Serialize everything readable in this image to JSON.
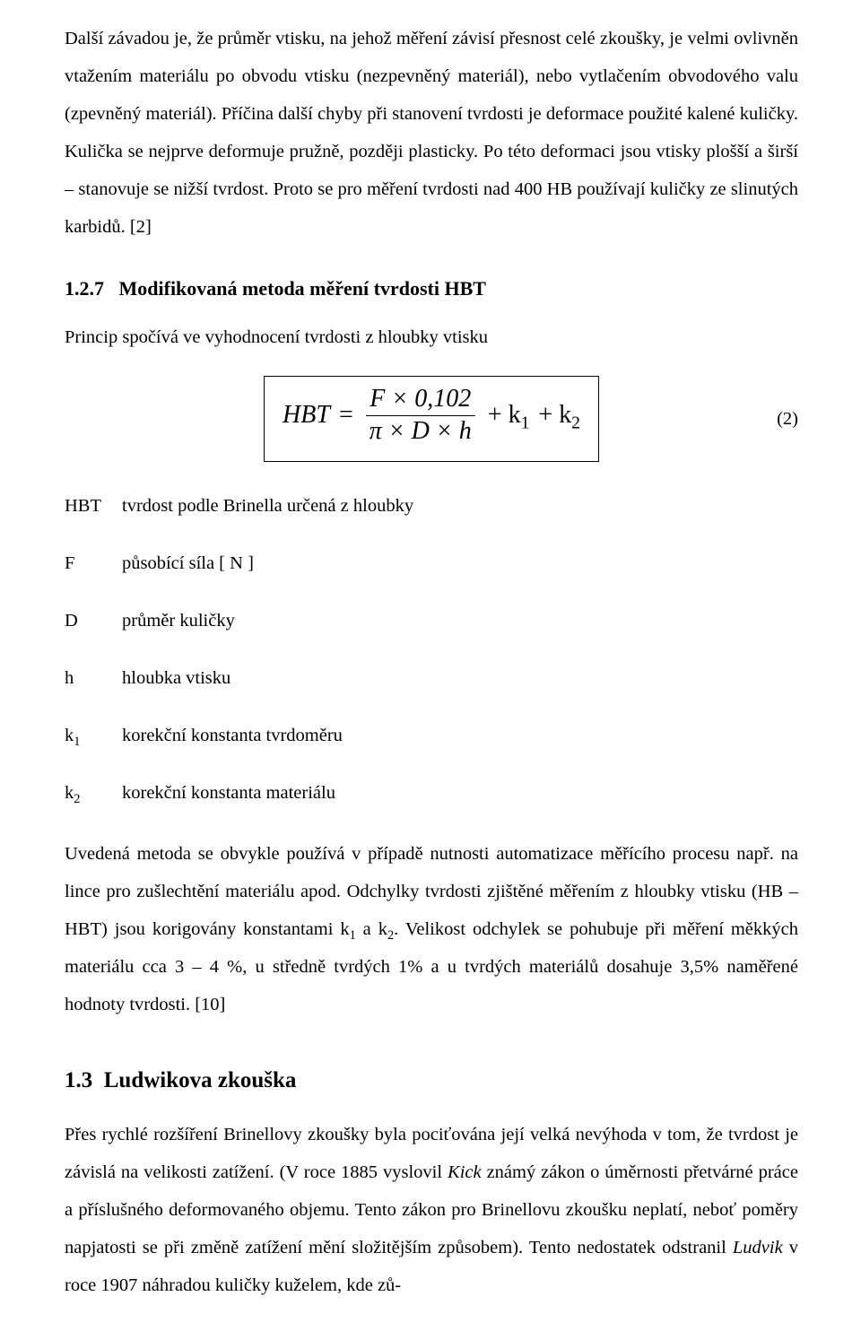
{
  "para1": "Další závadou je, že průměr vtisku, na jehož měření závisí přesnost celé zkoušky, je velmi ovlivněn vtažením materiálu po obvodu vtisku (nezpevněný materiál), nebo vytlačením obvodového valu (zpevněný materiál). Příčina další chyby při stanovení tvrdosti je deformace použité kalené kuličky. Kulička se nejprve deformuje pružně, později plasticky. Po této deformaci jsou vtisky plošší a širší – stanovuje se nižší tvrdost. Proto se pro měření tvrdosti nad 400 HB používají kuličky ze slinutých karbidů. [2]",
  "subsection": {
    "number": "1.2.7",
    "title": "Modifikovaná metoda měření tvrdosti HBT"
  },
  "principle": "Princip spočívá ve vyhodnocení tvrdosti z hloubky vtisku",
  "formula": {
    "lhs": "HBT",
    "eq": "=",
    "num": "F × 0,102",
    "den": "π × D × h",
    "tail": "+ k",
    "sub1": "1",
    "plus": "+ k",
    "sub2": "2",
    "eqnum": "(2)"
  },
  "defs": [
    {
      "sym": "HBT",
      "text": "tvrdost podle Brinella určená z hloubky"
    },
    {
      "sym": "F",
      "text": "působící síla [ N ]"
    },
    {
      "sym": "D",
      "text": "průměr kuličky"
    },
    {
      "sym": "h",
      "text": "hloubka vtisku"
    },
    {
      "sym": "k",
      "sub": "1",
      "text": "korekční konstanta tvrdoměru"
    },
    {
      "sym": "k",
      "sub": "2",
      "text": "korekční konstanta materiálu"
    }
  ],
  "para2_parts": {
    "a": "Uvedená metoda se obvykle používá v případě nutnosti automatizace měřícího procesu např. na lince pro zušlechtění materiálu apod. Odchylky tvrdosti zjištěné měřením z hloubky vtisku (HB – HBT) jsou korigovány konstantami k",
    "s1": "1",
    "b": " a k",
    "s2": "2",
    "c": ". Velikost odchylek se pohubuje při měření měkkých materiálu cca 3 – 4 %, u středně tvrdých 1% a u tvrdých materiálů dosahuje 3,5% naměřené hodnoty tvrdosti. [10]"
  },
  "section": {
    "number": "1.3",
    "title": "Ludwikova zkouška"
  },
  "para3_parts": {
    "a": "Přes rychlé rozšíření Brinellovy zkoušky byla pociťována její velká nevýhoda v tom, že tvrdost je závislá na velikosti zatížení. (V roce 1885 vyslovil ",
    "kick": "Kick",
    "b": " známý zákon o úměrnosti přetvárné práce a příslušného deformovaného objemu. Tento zákon pro Brinellovu zkoušku neplatí, neboť poměry napjatosti se při změně zatížení mění složitějším způsobem). Tento nedostatek odstranil ",
    "ludvik": "Ludvik",
    "c": " v roce 1907 náhradou kuličky kuželem, kde zů-"
  }
}
